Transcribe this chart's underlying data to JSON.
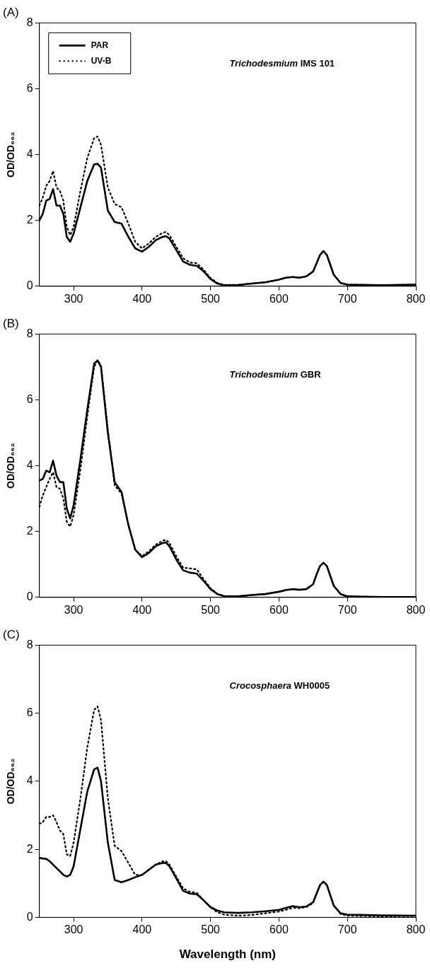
{
  "chart_data": [
    {
      "type": "line",
      "title": "(A)",
      "ylabel": "OD/OD₆₆₂",
      "annotations": [
        "Trichodesmium IMS 101"
      ],
      "legend": "top left",
      "marker": "none",
      "grid": false,
      "xlim": [
        250,
        800
      ],
      "xticks": [
        300,
        400,
        500,
        600,
        700,
        800
      ],
      "ylim": [
        0,
        8
      ],
      "yticks": [
        0,
        2,
        4,
        6,
        8
      ],
      "x": [
        250,
        255,
        260,
        265,
        270,
        275,
        280,
        285,
        290,
        295,
        300,
        310,
        320,
        330,
        335,
        340,
        350,
        360,
        370,
        380,
        390,
        400,
        410,
        420,
        430,
        435,
        440,
        450,
        460,
        470,
        480,
        490,
        500,
        510,
        520,
        540,
        560,
        580,
        600,
        610,
        620,
        630,
        640,
        650,
        655,
        660,
        665,
        670,
        675,
        680,
        690,
        700,
        750,
        800
      ],
      "series": [
        {
          "name": "PAR",
          "color": "#000000",
          "line_style": "solid",
          "values": [
            2.0,
            2.2,
            2.6,
            2.65,
            2.95,
            2.45,
            2.45,
            2.2,
            1.5,
            1.35,
            1.6,
            2.4,
            3.2,
            3.7,
            3.72,
            3.6,
            2.3,
            1.95,
            1.9,
            1.5,
            1.15,
            1.05,
            1.2,
            1.4,
            1.5,
            1.52,
            1.45,
            1.1,
            0.75,
            0.65,
            0.62,
            0.45,
            0.22,
            0.08,
            0.03,
            0.04,
            0.08,
            0.12,
            0.2,
            0.26,
            0.28,
            0.26,
            0.3,
            0.45,
            0.7,
            0.95,
            1.07,
            0.95,
            0.65,
            0.35,
            0.1,
            0.05,
            0.03,
            0.05
          ]
        },
        {
          "name": "UV-B",
          "color": "#000000",
          "line_style": "dotted",
          "values": [
            2.45,
            2.7,
            3.05,
            3.2,
            3.5,
            3.0,
            2.9,
            2.6,
            1.8,
            1.55,
            1.8,
            2.9,
            3.9,
            4.5,
            4.55,
            4.3,
            3.0,
            2.5,
            2.4,
            1.9,
            1.35,
            1.15,
            1.3,
            1.5,
            1.62,
            1.65,
            1.55,
            1.2,
            0.85,
            0.72,
            0.7,
            0.5,
            0.25,
            0.1,
            0.04,
            0.04,
            0.08,
            0.12,
            0.2,
            0.26,
            0.28,
            0.26,
            0.3,
            0.45,
            0.7,
            0.95,
            1.07,
            0.95,
            0.65,
            0.35,
            0.1,
            0.05,
            0.03,
            0.05
          ]
        }
      ]
    },
    {
      "type": "line",
      "title": "(B)",
      "ylabel": "OD/OD₆₆₂",
      "annotations": [
        "Trichodesmium GBR"
      ],
      "marker": "none",
      "grid": false,
      "xlim": [
        250,
        800
      ],
      "xticks": [
        300,
        400,
        500,
        600,
        700,
        800
      ],
      "ylim": [
        0,
        8
      ],
      "yticks": [
        0,
        2,
        4,
        6,
        8
      ],
      "x": [
        250,
        255,
        260,
        265,
        270,
        275,
        280,
        285,
        290,
        295,
        300,
        310,
        320,
        330,
        335,
        340,
        350,
        360,
        370,
        380,
        390,
        400,
        410,
        420,
        430,
        435,
        440,
        450,
        460,
        470,
        480,
        490,
        500,
        510,
        520,
        540,
        560,
        580,
        600,
        610,
        620,
        630,
        640,
        650,
        655,
        660,
        665,
        670,
        675,
        680,
        690,
        700,
        750,
        800
      ],
      "series": [
        {
          "color": "#000000",
          "line_style": "solid",
          "values": [
            3.55,
            3.6,
            3.85,
            3.8,
            4.15,
            3.7,
            3.5,
            3.5,
            2.7,
            2.4,
            2.8,
            4.2,
            5.7,
            7.1,
            7.2,
            7.0,
            5.0,
            3.5,
            3.2,
            2.2,
            1.45,
            1.22,
            1.35,
            1.55,
            1.65,
            1.67,
            1.55,
            1.15,
            0.82,
            0.75,
            0.72,
            0.5,
            0.25,
            0.1,
            0.04,
            0.03,
            0.07,
            0.1,
            0.17,
            0.22,
            0.25,
            0.23,
            0.25,
            0.4,
            0.7,
            0.95,
            1.05,
            0.95,
            0.65,
            0.35,
            0.1,
            0.03,
            0.01,
            0.01
          ]
        },
        {
          "color": "#000000",
          "line_style": "dotted",
          "values": [
            2.75,
            3.1,
            3.35,
            3.6,
            3.8,
            3.35,
            3.3,
            3.0,
            2.3,
            2.15,
            2.5,
            3.9,
            5.5,
            7.0,
            7.2,
            7.05,
            5.1,
            3.4,
            3.15,
            2.2,
            1.45,
            1.25,
            1.4,
            1.6,
            1.72,
            1.75,
            1.65,
            1.25,
            0.9,
            0.88,
            0.85,
            0.55,
            0.28,
            0.1,
            0.04,
            0.03,
            0.07,
            0.1,
            0.17,
            0.22,
            0.25,
            0.23,
            0.25,
            0.4,
            0.7,
            0.95,
            1.05,
            0.95,
            0.65,
            0.35,
            0.1,
            0.03,
            0.01,
            0.01
          ]
        }
      ]
    },
    {
      "type": "line",
      "title": "(C)",
      "xlabel": "Wavelength (nm)",
      "ylabel": "OD/OD₆₆₂",
      "annotations": [
        "Crocosphaera WH0005"
      ],
      "marker": "none",
      "grid": false,
      "xlim": [
        250,
        800
      ],
      "xticks": [
        300,
        400,
        500,
        600,
        700,
        800
      ],
      "ylim": [
        0,
        8
      ],
      "yticks": [
        0,
        2,
        4,
        6,
        8
      ],
      "x": [
        250,
        255,
        260,
        265,
        270,
        275,
        280,
        285,
        290,
        295,
        300,
        310,
        320,
        330,
        335,
        340,
        350,
        360,
        370,
        380,
        390,
        400,
        410,
        420,
        430,
        435,
        440,
        450,
        460,
        470,
        480,
        490,
        500,
        510,
        520,
        540,
        560,
        580,
        600,
        610,
        620,
        630,
        640,
        650,
        655,
        660,
        665,
        670,
        675,
        680,
        690,
        700,
        750,
        800
      ],
      "series": [
        {
          "color": "#000000",
          "line_style": "solid",
          "values": [
            1.75,
            1.73,
            1.72,
            1.65,
            1.55,
            1.45,
            1.35,
            1.25,
            1.2,
            1.25,
            1.5,
            2.6,
            3.7,
            4.35,
            4.4,
            4.0,
            2.2,
            1.1,
            1.03,
            1.1,
            1.18,
            1.25,
            1.4,
            1.55,
            1.6,
            1.6,
            1.5,
            1.15,
            0.78,
            0.7,
            0.68,
            0.5,
            0.3,
            0.2,
            0.15,
            0.13,
            0.15,
            0.18,
            0.22,
            0.28,
            0.33,
            0.3,
            0.32,
            0.45,
            0.7,
            0.95,
            1.05,
            0.95,
            0.65,
            0.35,
            0.12,
            0.08,
            0.06,
            0.05
          ]
        },
        {
          "color": "#000000",
          "line_style": "dotted",
          "values": [
            2.75,
            2.8,
            2.95,
            2.95,
            3.0,
            2.8,
            2.55,
            2.45,
            1.85,
            1.8,
            2.2,
            3.5,
            5.0,
            6.1,
            6.2,
            5.8,
            3.5,
            2.1,
            1.95,
            1.6,
            1.25,
            1.25,
            1.4,
            1.55,
            1.65,
            1.65,
            1.55,
            1.2,
            0.85,
            0.75,
            0.72,
            0.5,
            0.3,
            0.15,
            0.08,
            0.05,
            0.07,
            0.12,
            0.17,
            0.22,
            0.28,
            0.27,
            0.3,
            0.42,
            0.7,
            0.95,
            1.05,
            0.95,
            0.65,
            0.35,
            0.1,
            0.05,
            0.03,
            0.04
          ]
        }
      ]
    }
  ]
}
